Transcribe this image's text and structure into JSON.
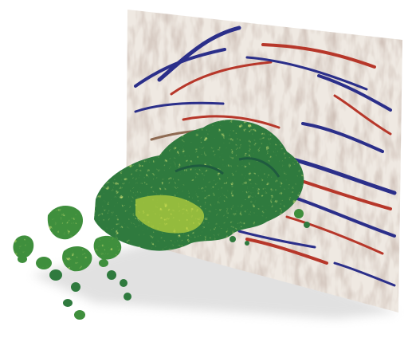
{
  "scene": {
    "description_kind": "3d-seismic-visualization",
    "colors": {
      "background": "#ffffff",
      "seismic_base": "#efe9e2",
      "seismic_blue": "#2b2f8a",
      "seismic_red": "#b7372a",
      "seismic_brown": "#8e6a52",
      "body_dark": "#1f5b3f",
      "body_mid": "#3f8f3d",
      "body_yellow": "#c8dd33",
      "body_lime": "#e7ef5a",
      "shadow": "#9e9e9e"
    }
  }
}
